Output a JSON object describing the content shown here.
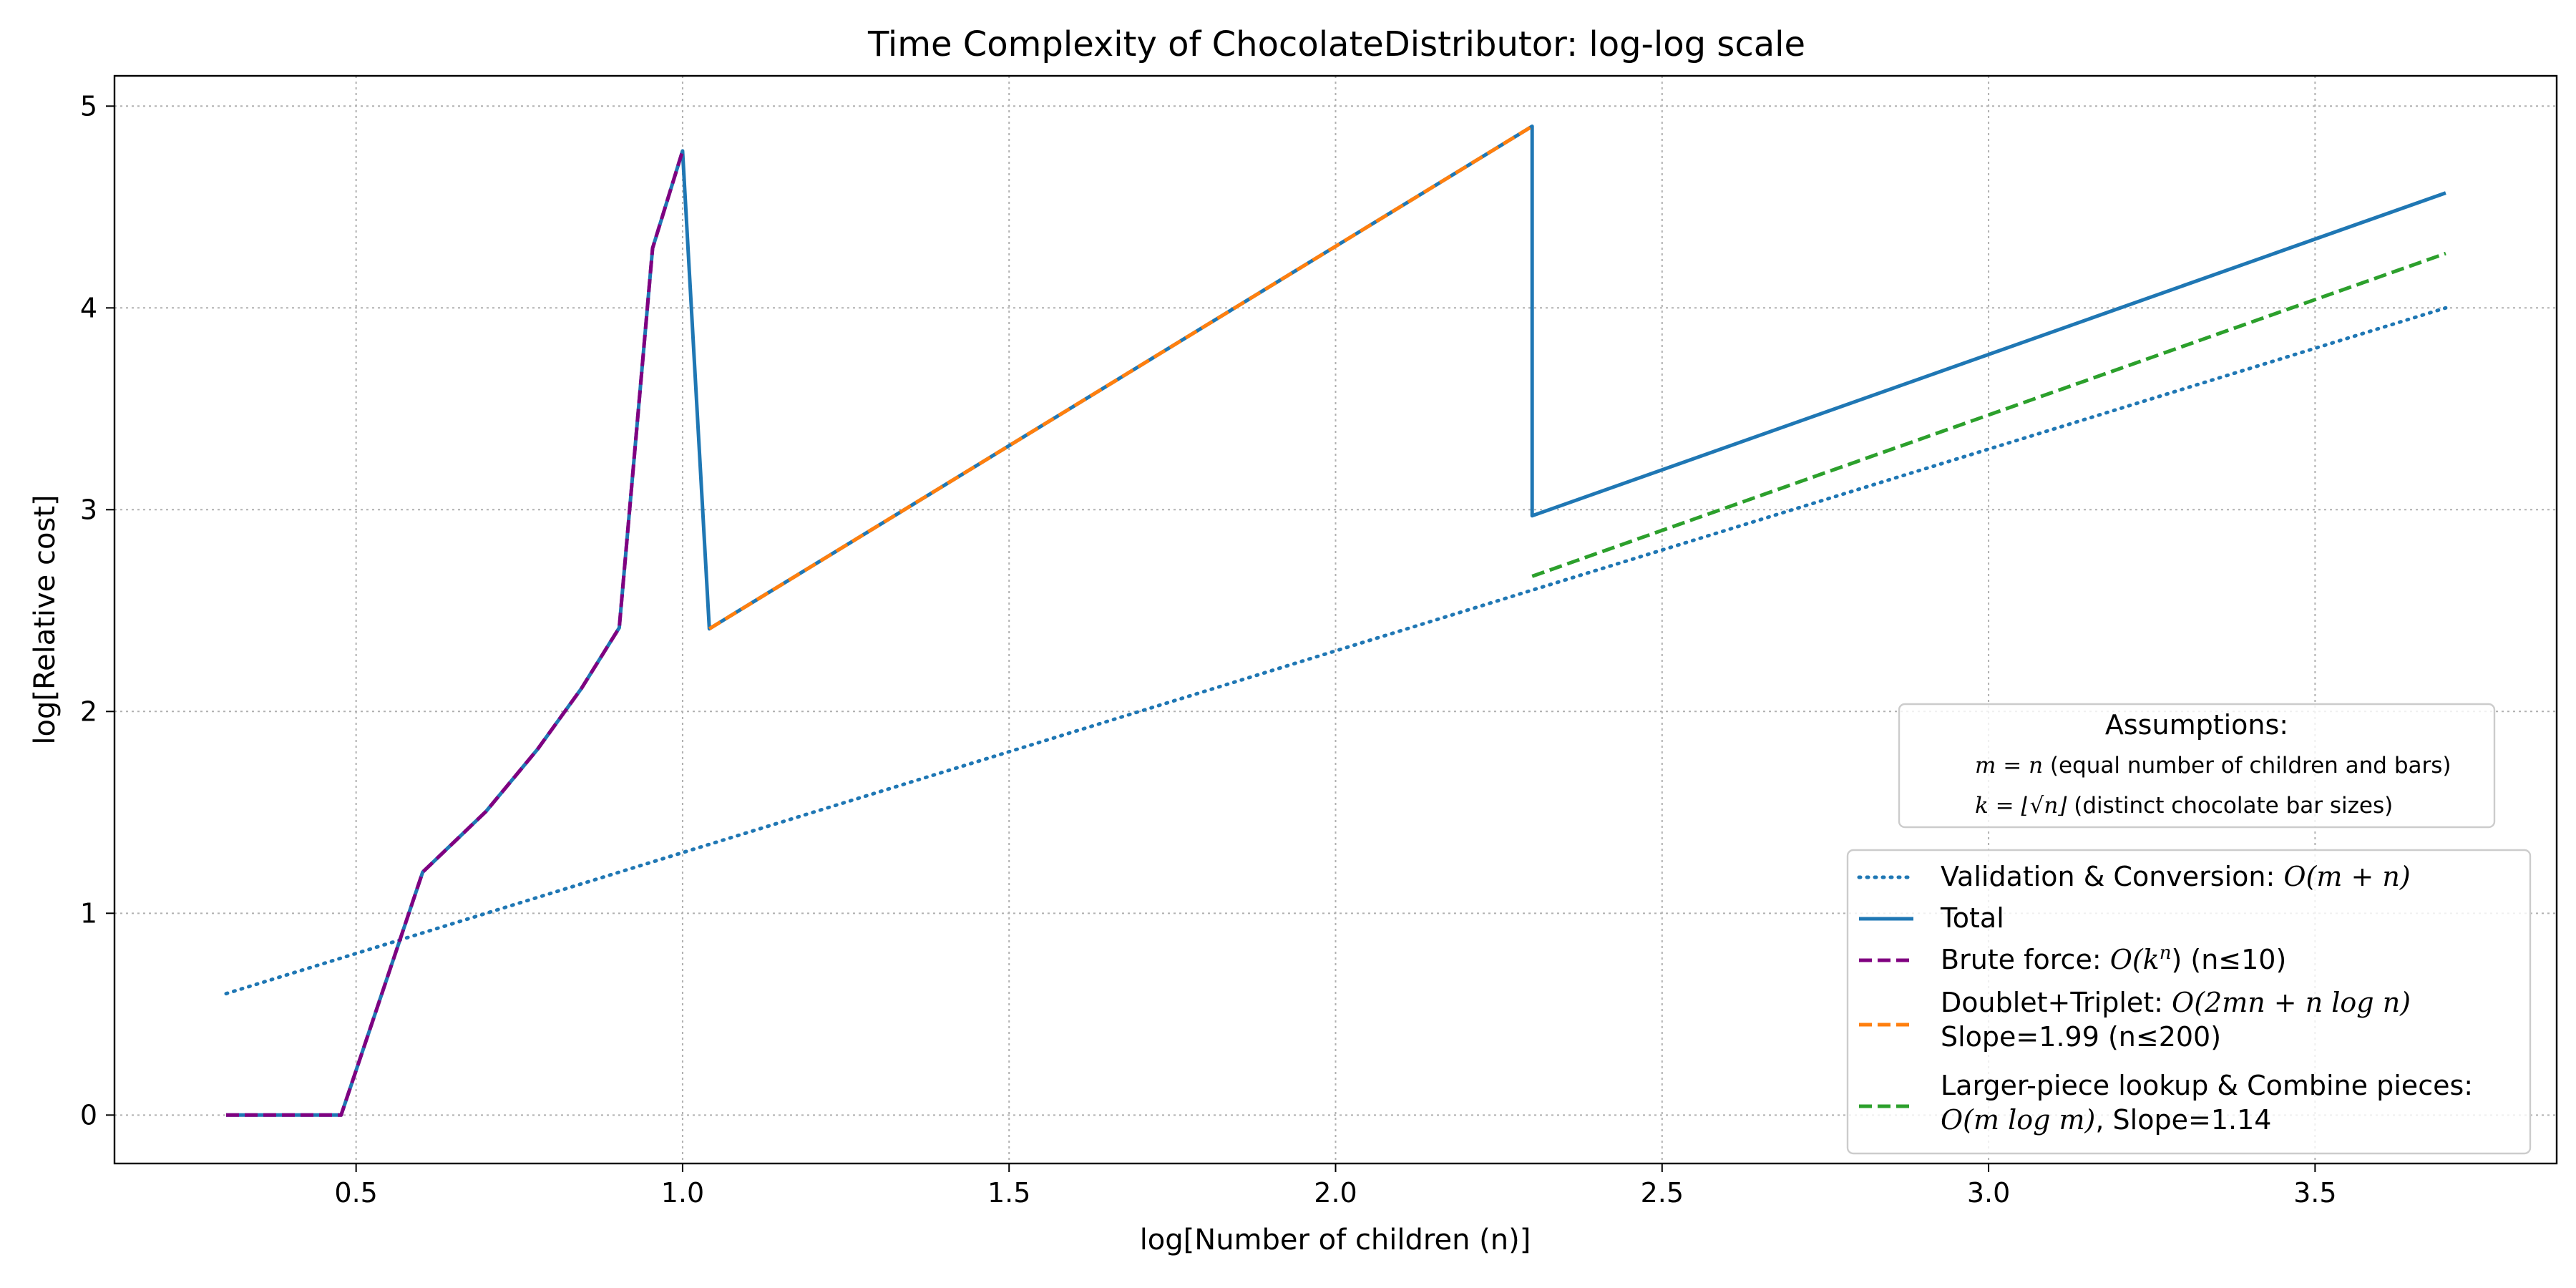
{
  "chart_data": {
    "type": "line",
    "title": "Time Complexity of ChocolateDistributor: log-log scale",
    "xlabel": "log[Number of children (n)]",
    "ylabel": "log[Relative cost]",
    "xlim": [
      0.13,
      3.87
    ],
    "ylim": [
      -0.24,
      5.15
    ],
    "xticks": [
      0.5,
      1.0,
      1.5,
      2.0,
      2.5,
      3.0,
      3.5
    ],
    "xtick_labels": [
      "0.5",
      "1.0",
      "1.5",
      "2.0",
      "2.5",
      "3.0",
      "3.5"
    ],
    "yticks": [
      0,
      1,
      2,
      3,
      4,
      5
    ],
    "ytick_labels": [
      "0",
      "1",
      "2",
      "3",
      "4",
      "5"
    ],
    "grid": true,
    "legend_position": "lower-right",
    "series": [
      {
        "name": "Validation & Conversion: O(m + n)",
        "legend_text": [
          "Validation & Conversion: ",
          "O(m + n)"
        ],
        "color": "#1f77b4",
        "style": "dotted",
        "x": [
          0.301,
          3.7
        ],
        "y": [
          0.602,
          4.0
        ]
      },
      {
        "name": "Total",
        "legend_text": [
          "Total"
        ],
        "color": "#1f77b4",
        "style": "solid",
        "x": [
          0.301,
          0.477,
          0.602,
          0.699,
          0.778,
          0.845,
          0.903,
          0.954,
          1.0,
          1.041,
          2.301,
          2.301,
          3.7
        ],
        "y": [
          0.0,
          0.0,
          1.204,
          1.505,
          1.813,
          2.114,
          2.415,
          4.296,
          4.778,
          2.41,
          4.9,
          2.97,
          4.57
        ]
      },
      {
        "name": "Brute force: O(k^n) (n≤10)",
        "legend_text": [
          "Brute force: ",
          "O(k",
          "n",
          ") (n≤10)"
        ],
        "color": "#800080",
        "style": "dashed",
        "x": [
          0.301,
          0.477,
          0.602,
          0.699,
          0.778,
          0.845,
          0.903,
          0.954,
          1.0
        ],
        "y": [
          0.0,
          0.0,
          1.204,
          1.505,
          1.813,
          2.114,
          2.415,
          4.296,
          4.778
        ]
      },
      {
        "name": "Doublet+Triplet: O(2mn + n log n) Slope=1.99 (n≤200)",
        "legend_text": [
          "Doublet+Triplet: ",
          "O(2mn + n log n)",
          "Slope=1.99 (n≤200)"
        ],
        "color": "#ff7f0e",
        "style": "dashed",
        "x": [
          1.041,
          2.301
        ],
        "y": [
          2.41,
          4.9
        ]
      },
      {
        "name": "Larger-piece lookup & Combine pieces: O(m log m), Slope=1.14",
        "legend_text": [
          "Larger-piece lookup & Combine pieces:",
          "O(m log m)",
          ", Slope=1.14"
        ],
        "color": "#2ca02c",
        "style": "dashed",
        "x": [
          2.301,
          3.7
        ],
        "y": [
          2.67,
          4.27
        ]
      }
    ],
    "annotations": {
      "title": "Assumptions:",
      "line1_math": "m = n",
      "line1_text": " (equal number of children and bars)",
      "line2_math": "k = ⌊√n⌋",
      "line2_text": " (distinct chocolate bar sizes)"
    }
  }
}
